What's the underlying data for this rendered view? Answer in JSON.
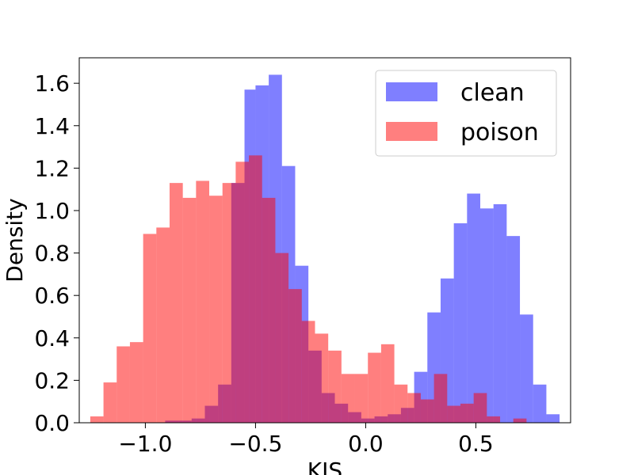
{
  "chart_data": {
    "type": "histogram",
    "title": "",
    "xlabel": "KIS",
    "ylabel": "Density",
    "xlim": [
      -1.3,
      0.93
    ],
    "ylim": [
      0,
      1.72
    ],
    "x_ticks": [
      -1.0,
      -0.5,
      0.0,
      0.5
    ],
    "x_tick_labels": [
      "−1.0",
      "−0.5",
      "0.0",
      "0.5"
    ],
    "y_ticks": [
      0.0,
      0.2,
      0.4,
      0.6,
      0.8,
      1.0,
      1.2,
      1.4,
      1.6
    ],
    "y_tick_labels": [
      "0.0",
      "0.2",
      "0.4",
      "0.6",
      "0.8",
      "1.0",
      "1.2",
      "1.4",
      "1.6"
    ],
    "grid": false,
    "legend_position": "top-right",
    "colors": {
      "clean": "#0000ff",
      "poison": "#ff0000",
      "opacity": 0.5
    },
    "series": [
      {
        "name": "clean",
        "bins": [
          {
            "start": -0.91,
            "end": -0.85,
            "value": 0.01
          },
          {
            "start": -0.85,
            "end": -0.79,
            "value": 0.01
          },
          {
            "start": -0.79,
            "end": -0.73,
            "value": 0.02
          },
          {
            "start": -0.73,
            "end": -0.67,
            "value": 0.08
          },
          {
            "start": -0.67,
            "end": -0.61,
            "value": 0.18
          },
          {
            "start": -0.61,
            "end": -0.55,
            "value": 1.13
          },
          {
            "start": -0.55,
            "end": -0.5,
            "value": 1.57
          },
          {
            "start": -0.5,
            "end": -0.44,
            "value": 1.59
          },
          {
            "start": -0.44,
            "end": -0.38,
            "value": 1.64
          },
          {
            "start": -0.38,
            "end": -0.32,
            "value": 1.21
          },
          {
            "start": -0.32,
            "end": -0.26,
            "value": 0.74
          },
          {
            "start": -0.26,
            "end": -0.2,
            "value": 0.34
          },
          {
            "start": -0.2,
            "end": -0.14,
            "value": 0.14
          },
          {
            "start": -0.14,
            "end": -0.08,
            "value": 0.09
          },
          {
            "start": -0.08,
            "end": -0.02,
            "value": 0.05
          },
          {
            "start": -0.02,
            "end": 0.04,
            "value": 0.02
          },
          {
            "start": 0.04,
            "end": 0.1,
            "value": 0.03
          },
          {
            "start": 0.1,
            "end": 0.16,
            "value": 0.04
          },
          {
            "start": 0.16,
            "end": 0.22,
            "value": 0.07
          },
          {
            "start": 0.22,
            "end": 0.28,
            "value": 0.24
          },
          {
            "start": 0.28,
            "end": 0.34,
            "value": 0.52
          },
          {
            "start": 0.34,
            "end": 0.4,
            "value": 0.68
          },
          {
            "start": 0.4,
            "end": 0.46,
            "value": 0.94
          },
          {
            "start": 0.46,
            "end": 0.52,
            "value": 1.08
          },
          {
            "start": 0.52,
            "end": 0.58,
            "value": 1.01
          },
          {
            "start": 0.58,
            "end": 0.64,
            "value": 1.03
          },
          {
            "start": 0.64,
            "end": 0.7,
            "value": 0.88
          },
          {
            "start": 0.7,
            "end": 0.76,
            "value": 0.51
          },
          {
            "start": 0.76,
            "end": 0.82,
            "value": 0.18
          },
          {
            "start": 0.82,
            "end": 0.88,
            "value": 0.04
          }
        ]
      },
      {
        "name": "poison",
        "bins": [
          {
            "start": -1.25,
            "end": -1.19,
            "value": 0.03
          },
          {
            "start": -1.19,
            "end": -1.13,
            "value": 0.19
          },
          {
            "start": -1.13,
            "end": -1.07,
            "value": 0.36
          },
          {
            "start": -1.07,
            "end": -1.01,
            "value": 0.38
          },
          {
            "start": -1.01,
            "end": -0.95,
            "value": 0.89
          },
          {
            "start": -0.95,
            "end": -0.89,
            "value": 0.92
          },
          {
            "start": -0.89,
            "end": -0.83,
            "value": 1.13
          },
          {
            "start": -0.83,
            "end": -0.77,
            "value": 1.06
          },
          {
            "start": -0.77,
            "end": -0.71,
            "value": 1.14
          },
          {
            "start": -0.71,
            "end": -0.65,
            "value": 1.07
          },
          {
            "start": -0.65,
            "end": -0.59,
            "value": 1.13
          },
          {
            "start": -0.59,
            "end": -0.53,
            "value": 1.23
          },
          {
            "start": -0.53,
            "end": -0.47,
            "value": 1.26
          },
          {
            "start": -0.47,
            "end": -0.41,
            "value": 1.06
          },
          {
            "start": -0.41,
            "end": -0.35,
            "value": 0.8
          },
          {
            "start": -0.35,
            "end": -0.29,
            "value": 0.63
          },
          {
            "start": -0.29,
            "end": -0.23,
            "value": 0.48
          },
          {
            "start": -0.23,
            "end": -0.17,
            "value": 0.42
          },
          {
            "start": -0.17,
            "end": -0.11,
            "value": 0.34
          },
          {
            "start": -0.11,
            "end": -0.05,
            "value": 0.23
          },
          {
            "start": -0.05,
            "end": 0.01,
            "value": 0.23
          },
          {
            "start": 0.01,
            "end": 0.07,
            "value": 0.33
          },
          {
            "start": 0.07,
            "end": 0.13,
            "value": 0.37
          },
          {
            "start": 0.13,
            "end": 0.19,
            "value": 0.18
          },
          {
            "start": 0.19,
            "end": 0.25,
            "value": 0.14
          },
          {
            "start": 0.25,
            "end": 0.31,
            "value": 0.11
          },
          {
            "start": 0.31,
            "end": 0.37,
            "value": 0.23
          },
          {
            "start": 0.37,
            "end": 0.43,
            "value": 0.08
          },
          {
            "start": 0.43,
            "end": 0.49,
            "value": 0.09
          },
          {
            "start": 0.49,
            "end": 0.55,
            "value": 0.14
          },
          {
            "start": 0.55,
            "end": 0.61,
            "value": 0.03
          },
          {
            "start": 0.61,
            "end": 0.67,
            "value": 0.0
          },
          {
            "start": 0.67,
            "end": 0.73,
            "value": 0.02
          }
        ]
      }
    ]
  }
}
